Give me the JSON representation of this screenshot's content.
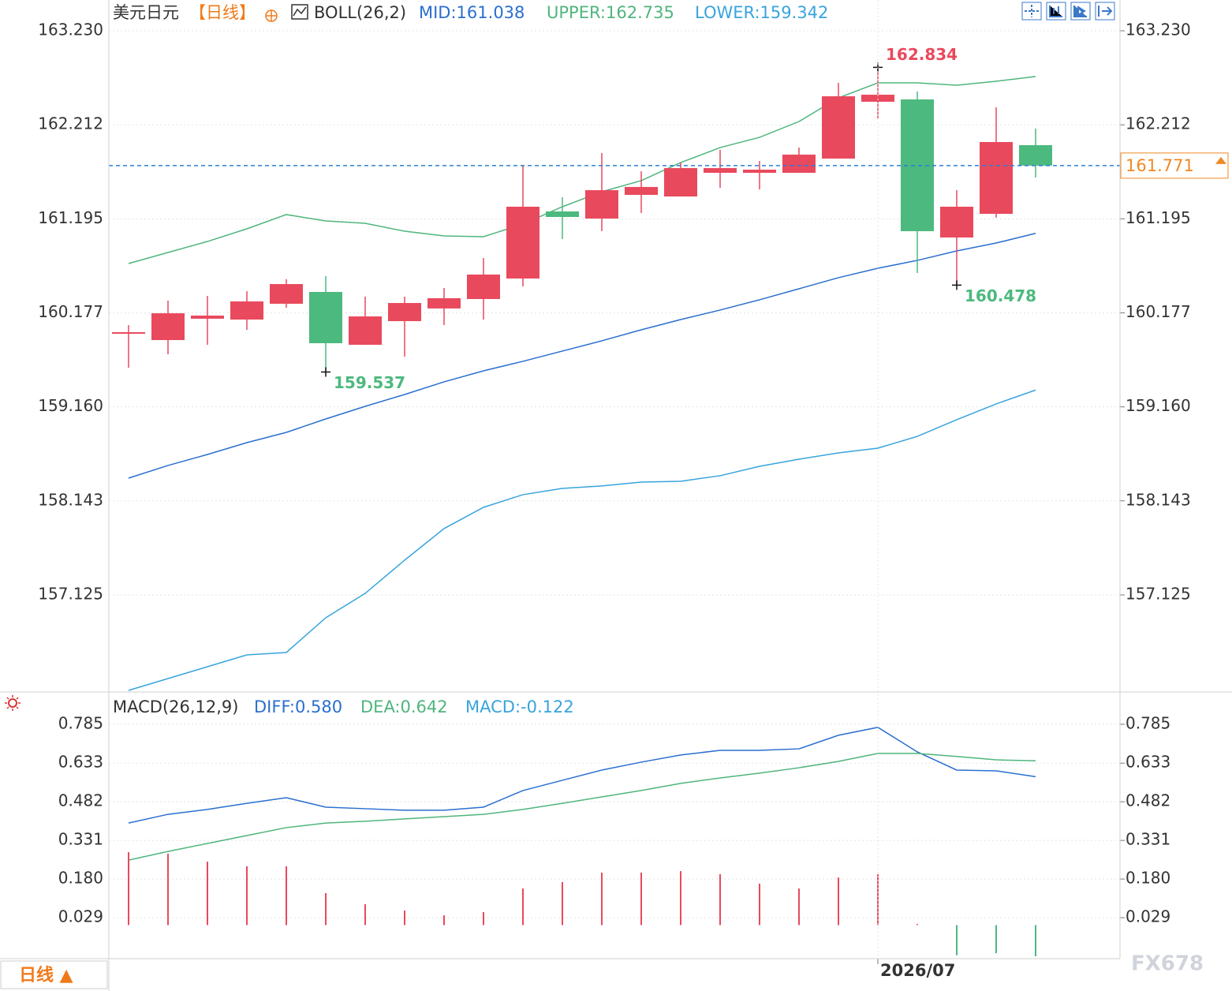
{
  "chart_data": [
    {
      "type": "candlestick",
      "title": "美元日元",
      "period": "【日线】",
      "indicator": "BOLL(26,2)",
      "categories": [
        null,
        null,
        null,
        null,
        null,
        null,
        null,
        null,
        null,
        null,
        null,
        null,
        null,
        null,
        null,
        null,
        null,
        null,
        null,
        "2026/07",
        null,
        null,
        null,
        null
      ],
      "open": [
        159.951,
        159.883,
        160.114,
        160.105,
        160.276,
        160.404,
        159.832,
        160.088,
        160.225,
        160.327,
        160.549,
        161.275,
        161.198,
        161.454,
        161.437,
        161.693,
        161.693,
        161.693,
        161.847,
        162.462,
        162.487,
        160.993,
        161.249,
        161.992
      ],
      "high": [
        160.045,
        160.31,
        160.361,
        160.412,
        160.541,
        160.575,
        160.353,
        160.353,
        160.447,
        160.771,
        161.779,
        161.429,
        161.907,
        161.71,
        161.804,
        161.941,
        161.821,
        161.966,
        162.667,
        162.834,
        162.573,
        161.505,
        162.402,
        162.171
      ],
      "low": [
        159.584,
        159.729,
        159.832,
        159.994,
        160.233,
        159.537,
        159.832,
        159.704,
        160.045,
        160.105,
        160.464,
        160.976,
        161.061,
        161.258,
        161.437,
        161.531,
        161.514,
        161.693,
        161.847,
        162.282,
        160.609,
        160.478,
        161.207,
        161.642
      ],
      "close": [
        159.968,
        160.173,
        160.148,
        160.301,
        160.489,
        159.849,
        160.139,
        160.284,
        160.336,
        160.592,
        161.326,
        161.215,
        161.505,
        161.54,
        161.744,
        161.744,
        161.727,
        161.89,
        162.521,
        162.538,
        161.061,
        161.326,
        162.026,
        161.771
      ],
      "up_color": "#e9495d",
      "down_color": "#4cb97e",
      "last_price_color": "#f08a24",
      "last_line_color": "#2b7fd4",
      "series": [
        {
          "name": "MID:161.038",
          "color": "#2a6fcf",
          "values": [
            158.389,
            158.526,
            158.645,
            158.773,
            158.884,
            159.029,
            159.166,
            159.294,
            159.431,
            159.55,
            159.653,
            159.764,
            159.875,
            159.994,
            160.105,
            160.208,
            160.319,
            160.438,
            160.558,
            160.66,
            160.745,
            160.848,
            160.933,
            161.038
          ]
        },
        {
          "name": "UPPER:162.735",
          "color": "#4fb57d",
          "values": [
            160.711,
            160.831,
            160.95,
            161.087,
            161.241,
            161.172,
            161.147,
            161.061,
            161.01,
            161.002,
            161.138,
            161.326,
            161.488,
            161.608,
            161.804,
            161.966,
            162.077,
            162.248,
            162.504,
            162.666,
            162.666,
            162.641,
            162.684,
            162.735
          ]
        },
        {
          "name": "LOWER:159.342",
          "color": "#38a4dd",
          "values": [
            156.092,
            156.22,
            156.348,
            156.476,
            156.502,
            156.878,
            157.142,
            157.501,
            157.843,
            158.073,
            158.21,
            158.278,
            158.304,
            158.346,
            158.355,
            158.415,
            158.517,
            158.594,
            158.662,
            158.713,
            158.841,
            159.021,
            159.192,
            159.342
          ]
        }
      ],
      "ylim": [
        156.092,
        163.563
      ],
      "yticks": [
        {
          "value": 163.23,
          "label": "163.230"
        },
        162.212,
        161.195,
        160.177,
        {
          "value": 159.16,
          "label": "159.160"
        },
        158.143,
        157.125
      ],
      "grid": true
    },
    {
      "type": "macd",
      "title": "MACD(26,12,9)",
      "series": [
        {
          "name": "DIFF:0.580",
          "color": "#2a6fcf",
          "kind": "line",
          "values": [
            0.399,
            0.433,
            0.452,
            0.476,
            0.498,
            0.461,
            0.455,
            0.449,
            0.449,
            0.461,
            0.526,
            0.566,
            0.606,
            0.637,
            0.665,
            0.683,
            0.683,
            0.689,
            0.742,
            0.773,
            0.677,
            0.606,
            0.603,
            0.58
          ]
        },
        {
          "name": "DEA:0.642",
          "color": "#4fb57d",
          "kind": "line",
          "values": [
            0.254,
            0.288,
            0.319,
            0.35,
            0.381,
            0.399,
            0.406,
            0.415,
            0.424,
            0.433,
            0.452,
            0.476,
            0.501,
            0.526,
            0.554,
            0.575,
            0.594,
            0.615,
            0.64,
            0.671,
            0.671,
            0.659,
            0.646,
            0.642
          ]
        },
        {
          "name": "MACD:-0.122",
          "color": "#38a4dd",
          "kind": "bar",
          "positive_color": "#e9495d",
          "negative_color": "#4cb97e",
          "values": [
            0.285,
            0.279,
            0.248,
            0.23,
            0.23,
            0.125,
            0.082,
            0.057,
            0.038,
            0.051,
            0.143,
            0.168,
            0.205,
            0.205,
            0.211,
            0.199,
            0.162,
            0.143,
            0.186,
            0.199,
            0.004,
            -0.118,
            -0.11,
            -0.122
          ]
        }
      ],
      "ylim": [
        -0.125,
        0.902
      ],
      "yticks": [
        0.785,
        0.633,
        0.482,
        0.331,
        {
          "value": 0.18,
          "label": "0.180"
        },
        0.029
      ],
      "grid": true
    }
  ],
  "period_button": "日线 ▲",
  "watermark": "FX678"
}
